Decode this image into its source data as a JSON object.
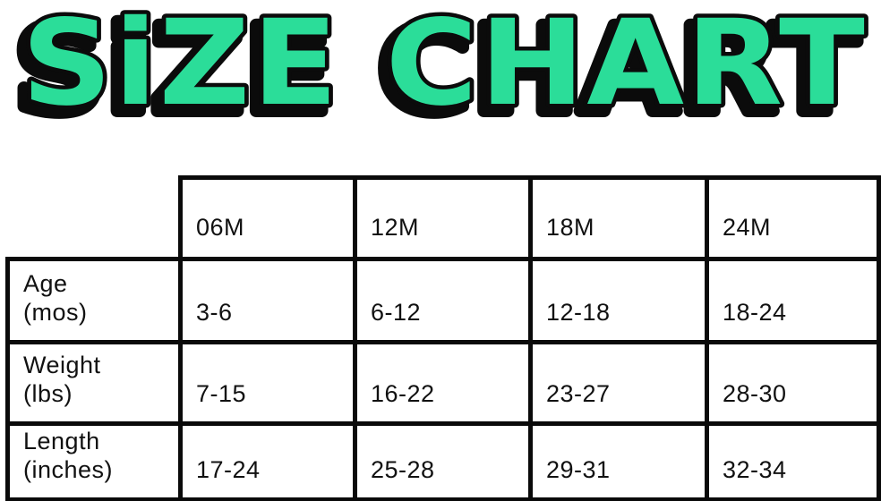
{
  "title": {
    "text": "SiZE CHART",
    "fill_color": "#2bdd99",
    "outline_color": "#0b0b0b"
  },
  "chart_data": {
    "type": "table",
    "title": "SiZE CHART",
    "columns": [
      "06M",
      "12M",
      "18M",
      "24M"
    ],
    "rows": [
      {
        "label": "Age",
        "unit": "(mos)",
        "values": [
          "3-6",
          "6-12",
          "12-18",
          "18-24"
        ]
      },
      {
        "label": "Weight",
        "unit": "(lbs)",
        "values": [
          "7-15",
          "16-22",
          "23-27",
          "28-30"
        ]
      },
      {
        "label": "Length",
        "unit": "(inches)",
        "values": [
          "17-24",
          "25-28",
          "29-31",
          "32-34"
        ]
      }
    ],
    "layout": {
      "corner_cell": "empty, no borders",
      "grid_color": "#0a0a0a",
      "text_color": "#111111",
      "background": "#ffffff"
    }
  }
}
